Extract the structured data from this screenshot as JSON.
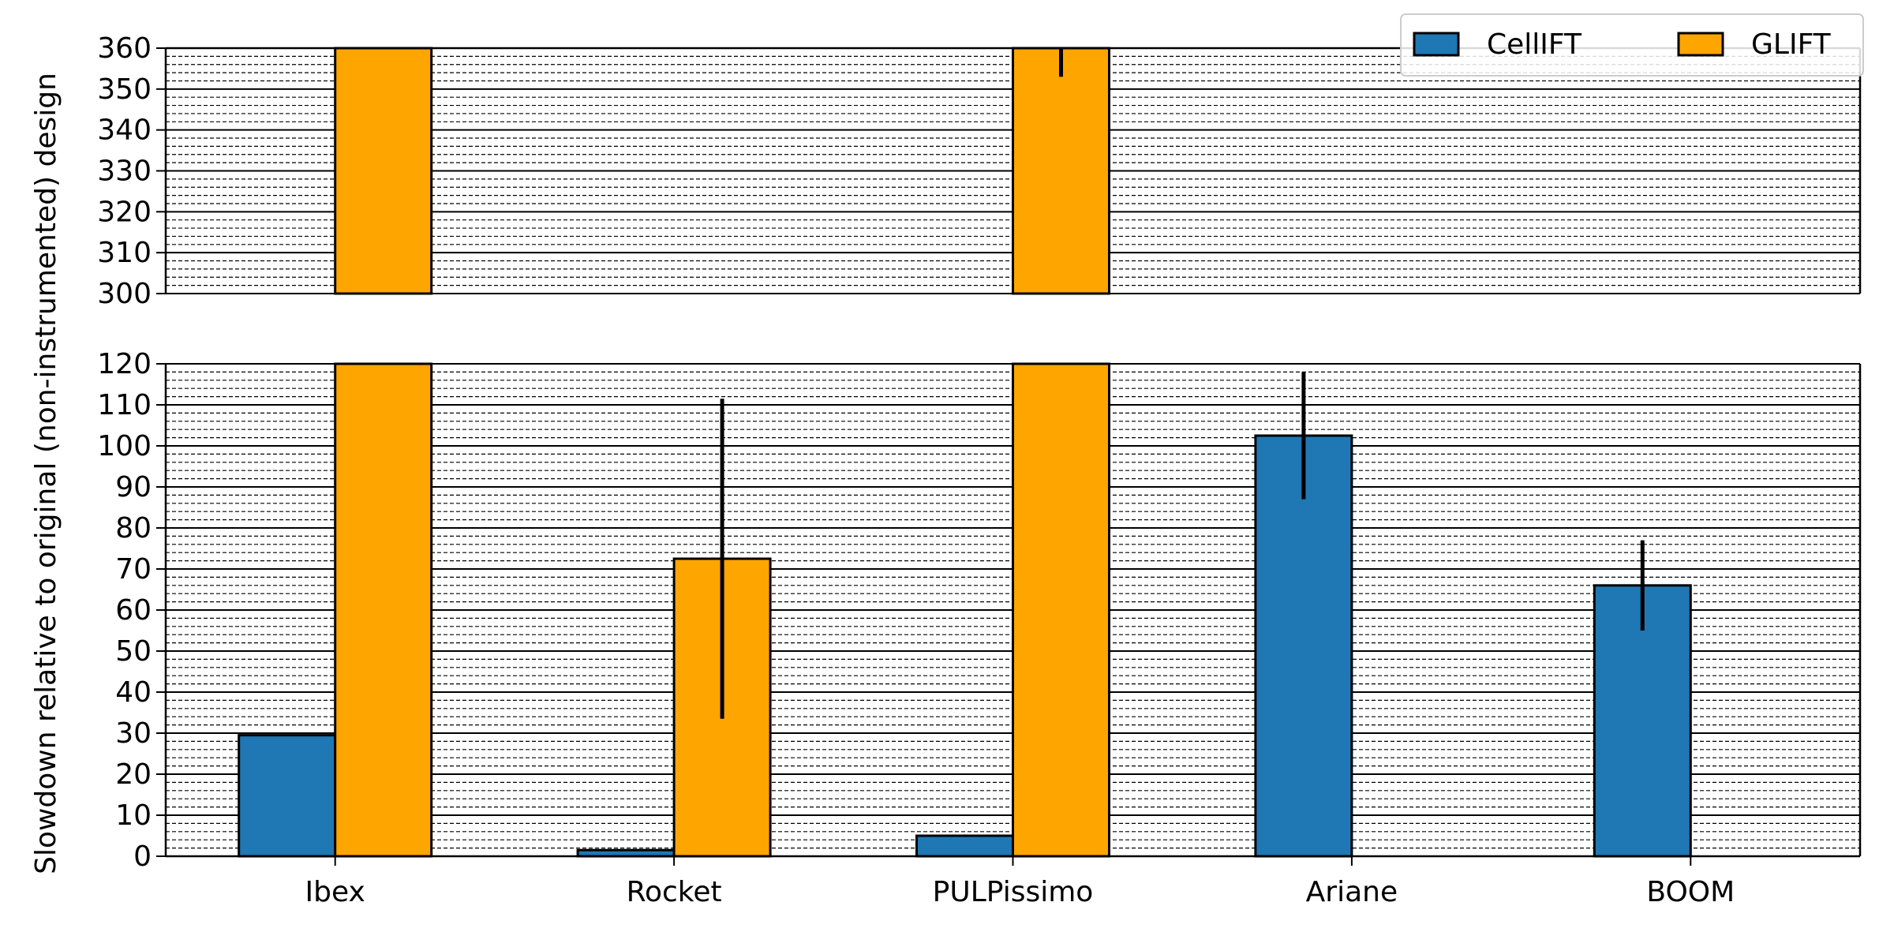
{
  "chart_data": {
    "type": "bar",
    "broken_y_axis": true,
    "categories": [
      "Ibex",
      "Rocket",
      "PULPissimo",
      "Ariane",
      "BOOM"
    ],
    "ylabel": "Slowdown relative to original (non-instrumented) design",
    "ylim_upper": [
      300,
      360
    ],
    "ylim_lower": [
      0,
      120
    ],
    "yticks_upper": [
      300,
      310,
      320,
      330,
      340,
      350,
      360
    ],
    "yticks_lower": [
      0,
      10,
      20,
      30,
      40,
      50,
      60,
      70,
      80,
      90,
      100,
      110,
      120
    ],
    "minor_grid_step": 2,
    "grid": true,
    "legend_position": "top-right",
    "series": [
      {
        "name": "CellIFT",
        "color": "#1f77b4",
        "values": [
          29.5,
          1.5,
          5,
          102.5,
          66
        ],
        "error": [
          null,
          null,
          0.3,
          15.5,
          11
        ]
      },
      {
        "name": "GLIFT",
        "color": "#ffa500",
        "values": [
          370,
          72.5,
          370,
          null,
          null
        ],
        "error": [
          null,
          39,
          17,
          null,
          null
        ]
      }
    ]
  }
}
